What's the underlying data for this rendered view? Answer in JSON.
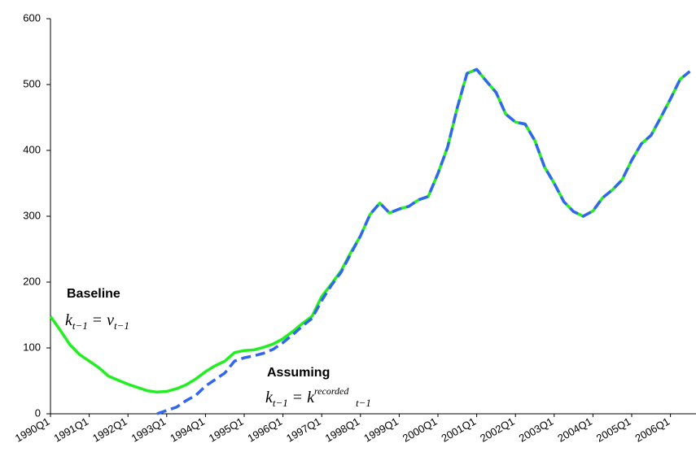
{
  "chart_data": {
    "type": "line",
    "categories": [
      "1990Q1",
      null,
      null,
      null,
      "1991Q1",
      null,
      null,
      null,
      "1992Q1",
      null,
      null,
      null,
      "1993Q1",
      null,
      null,
      null,
      "1994Q1",
      null,
      null,
      null,
      "1995Q1",
      null,
      null,
      null,
      "1996Q1",
      null,
      null,
      null,
      "1997Q1",
      null,
      null,
      null,
      "1998Q1",
      null,
      null,
      null,
      "1999Q1",
      null,
      null,
      null,
      "2000Q1",
      null,
      null,
      null,
      "2001Q1",
      null,
      null,
      null,
      "2002Q1",
      null,
      null,
      null,
      "2003Q1",
      null,
      null,
      null,
      "2004Q1",
      null,
      null,
      null,
      "2005Q1",
      null,
      null,
      null,
      "2006Q1",
      null,
      null
    ],
    "series": [
      {
        "name": "Baseline",
        "color": "#22ee22",
        "dash": false,
        "values": [
          148,
          127,
          105,
          90,
          80,
          70,
          57,
          51,
          45,
          40,
          35,
          33,
          34,
          38,
          44,
          53,
          64,
          73,
          80,
          93,
          96,
          97,
          101,
          106,
          114,
          125,
          137,
          148,
          178,
          197,
          217,
          245,
          270,
          303,
          320,
          305,
          311,
          315,
          325,
          330,
          365,
          405,
          465,
          517,
          523,
          505,
          488,
          455,
          443,
          440,
          415,
          375,
          350,
          322,
          307,
          300,
          308,
          328,
          340,
          355,
          385,
          410,
          423,
          450,
          478,
          508,
          520
        ],
        "annotation": {
          "lhs": "k",
          "lhs_sub": "t−1",
          "eq": "=",
          "rhs": "v",
          "rhs_sub": "t−1"
        }
      },
      {
        "name": "Assuming",
        "color": "#3366ee",
        "dash": true,
        "values": [
          0,
          null,
          null,
          null,
          null,
          null,
          null,
          null,
          null,
          null,
          null,
          0,
          5,
          10,
          20,
          28,
          42,
          52,
          62,
          80,
          85,
          88,
          92,
          98,
          108,
          120,
          133,
          145,
          172,
          195,
          215,
          243,
          270,
          303,
          320,
          305,
          311,
          315,
          325,
          330,
          365,
          405,
          465,
          517,
          523,
          505,
          488,
          455,
          443,
          440,
          415,
          375,
          350,
          322,
          307,
          300,
          308,
          328,
          340,
          355,
          385,
          410,
          423,
          450,
          478,
          508,
          520
        ],
        "annotation": {
          "lhs": "k",
          "lhs_sub": "t−1",
          "eq": "=",
          "rhs": "k",
          "rhs_sub": "t−1",
          "rhs_sup": "recorded"
        }
      }
    ],
    "ylim": [
      0,
      600
    ],
    "yticks": [
      0,
      100,
      200,
      300,
      400,
      500,
      600
    ],
    "grid": false
  }
}
